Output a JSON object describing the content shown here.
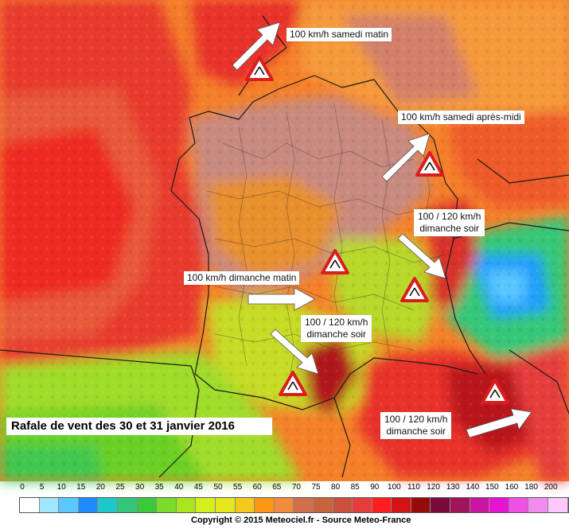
{
  "map": {
    "title": "Rafale de vent des 30 et 31 janvier 2016",
    "copyright": "Copyright © 2015 Meteociel.fr - Source Meteo-France",
    "annotations": [
      {
        "id": "a1",
        "line1": "100 km/h samedi matin",
        "line2": ""
      },
      {
        "id": "a2",
        "line1": "100 km/h samedi après-midi",
        "line2": ""
      },
      {
        "id": "a3",
        "line1": "100 / 120 km/h",
        "line2": "dimanche soir"
      },
      {
        "id": "a4",
        "line1": "100 km/h dimanche matin",
        "line2": ""
      },
      {
        "id": "a5",
        "line1": "100 / 120 km/h",
        "line2": "dimanche soir"
      },
      {
        "id": "a6",
        "line1": "100 / 120 km/h",
        "line2": "dimanche soir"
      }
    ],
    "icons": [
      "wind-warning-icon",
      "arrow-icon"
    ],
    "legend": {
      "ticks": [
        "0",
        "5",
        "10",
        "15",
        "20",
        "25",
        "30",
        "35",
        "40",
        "45",
        "50",
        "55",
        "60",
        "65",
        "70",
        "75",
        "80",
        "85",
        "90",
        "100",
        "110",
        "120",
        "130",
        "140",
        "150",
        "160",
        "180",
        "200"
      ],
      "colors": [
        "#ffffff",
        "#a0e6ff",
        "#5ac8ff",
        "#1e8cff",
        "#1cc8c8",
        "#32c878",
        "#3cc83c",
        "#78dc28",
        "#aae61e",
        "#d2f01e",
        "#e6e61e",
        "#f5c81e",
        "#ff9614",
        "#f08c3c",
        "#d26e4b",
        "#c8643c",
        "#c8503c",
        "#e63c3c",
        "#ff1e1e",
        "#d21414",
        "#960a0a",
        "#780a3c",
        "#a0145a",
        "#c814a0",
        "#e614d2",
        "#f050e6",
        "#f08cf0",
        "#ffc8ff"
      ]
    }
  }
}
